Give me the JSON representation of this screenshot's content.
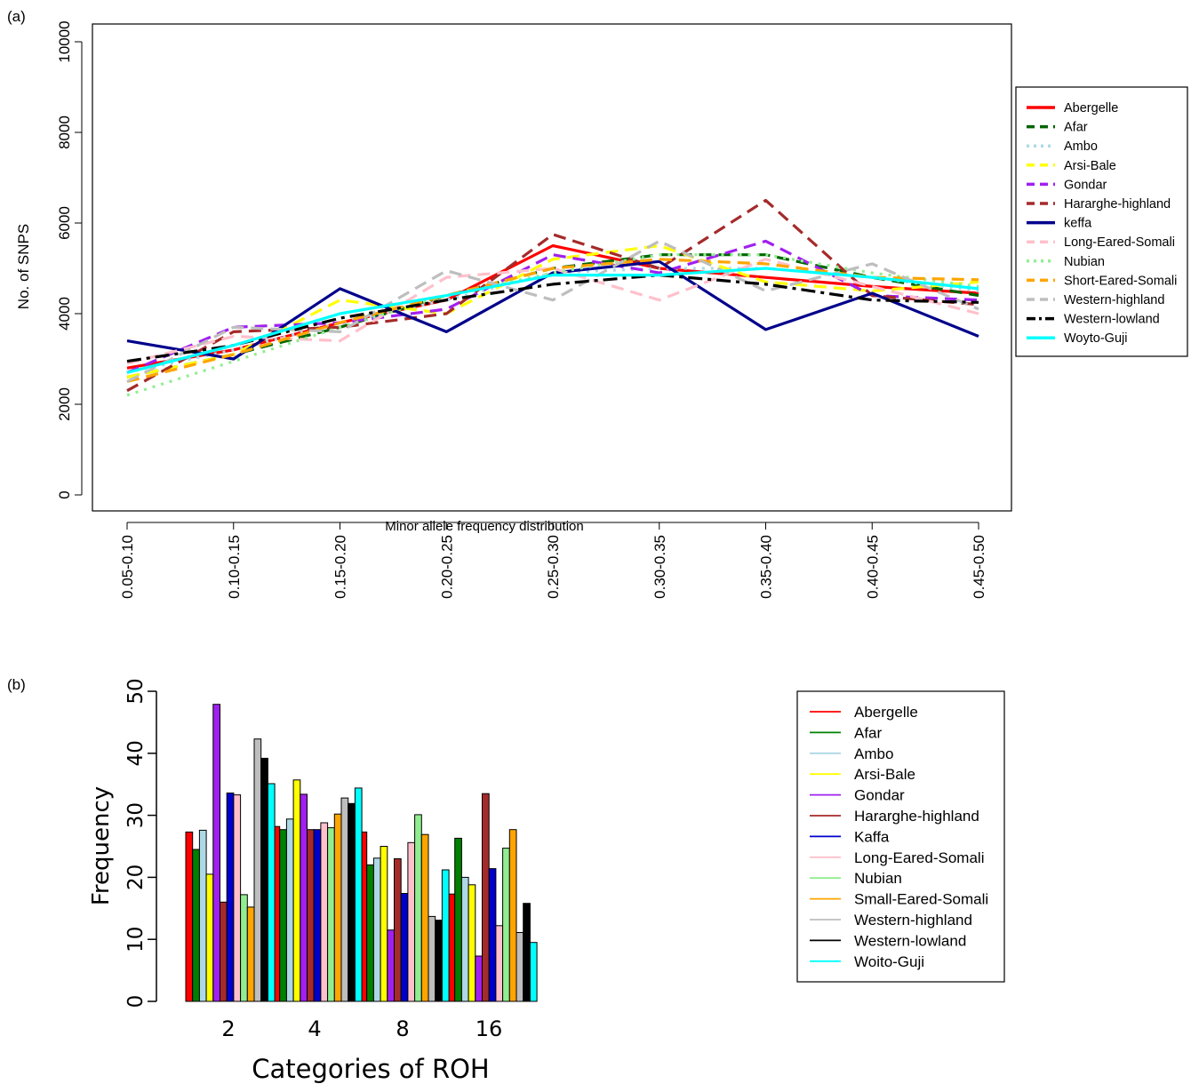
{
  "panel_a_label": "(a)",
  "panel_b_label": "(b)",
  "chart_data": [
    {
      "type": "line",
      "title": "",
      "xlabel": "Minor allele frequency distribution",
      "ylabel": "No. of SNPS",
      "categories": [
        "0.05-0.10",
        "0.10-0.15",
        "0.15-0.20",
        "0.20-0.25",
        "0.25-0.30",
        "0.30-0.35",
        "0.35-0.40",
        "0.40-0.45",
        "0.45-0.50"
      ],
      "ylim": [
        0,
        10000
      ],
      "yticks": [
        0,
        2000,
        4000,
        6000,
        8000,
        10000
      ],
      "grid": false,
      "legend_position": "right",
      "series": [
        {
          "name": "Abergelle",
          "color": "#ff0000",
          "dash": "solid",
          "values": [
            2800,
            3200,
            3800,
            4300,
            5500,
            5000,
            4800,
            4600,
            4450
          ]
        },
        {
          "name": "Afar",
          "color": "#006400",
          "dash": "dashed",
          "values": [
            2600,
            3100,
            3700,
            4400,
            5000,
            5300,
            5300,
            4800,
            4400
          ]
        },
        {
          "name": "Ambo",
          "color": "#add8e6",
          "dash": "dotted",
          "values": [
            2700,
            3200,
            3800,
            4300,
            4900,
            5000,
            5000,
            4800,
            4500
          ]
        },
        {
          "name": "Arsi-Bale",
          "color": "#ffff00",
          "dash": "dashed",
          "values": [
            2600,
            3100,
            4300,
            4000,
            5200,
            5500,
            4700,
            4500,
            4700
          ]
        },
        {
          "name": "Gondar",
          "color": "#a020f0",
          "dash": "dashed",
          "values": [
            2700,
            3700,
            3800,
            4100,
            5300,
            4900,
            5600,
            4400,
            4300
          ]
        },
        {
          "name": "Hararghe-highland",
          "color": "#a52a2a",
          "dash": "dashed",
          "values": [
            2300,
            3600,
            3700,
            4000,
            5750,
            5000,
            6500,
            4400,
            4200
          ]
        },
        {
          "name": "keffa",
          "color": "#00008b",
          "dash": "solid",
          "values": [
            3400,
            3000,
            4550,
            3600,
            4900,
            5150,
            3650,
            4450,
            3500
          ]
        },
        {
          "name": "Long-Eared-Somali",
          "color": "#ffc0cb",
          "dash": "dashed",
          "values": [
            2900,
            3500,
            3400,
            4800,
            5000,
            4300,
            5200,
            4600,
            4000
          ]
        },
        {
          "name": "Nubian",
          "color": "#90ee90",
          "dash": "dotted",
          "values": [
            2200,
            2950,
            3700,
            4400,
            4900,
            5300,
            5300,
            4900,
            4600
          ]
        },
        {
          "name": "Short-Eared-Somali",
          "color": "#ffa500",
          "dash": "dashed",
          "values": [
            2500,
            3100,
            3800,
            4400,
            5000,
            5200,
            5100,
            4800,
            4750
          ]
        },
        {
          "name": "Western-highland",
          "color": "#bebebe",
          "dash": "dashed",
          "values": [
            2500,
            3700,
            3600,
            4950,
            4300,
            5600,
            4500,
            5100,
            4100
          ]
        },
        {
          "name": "Western-lowland",
          "color": "#000000",
          "dash": "dotdash",
          "values": [
            2950,
            3300,
            3900,
            4300,
            4650,
            4850,
            4650,
            4300,
            4250
          ]
        },
        {
          "name": "Woyto-Guji",
          "color": "#00ffff",
          "dash": "solid",
          "values": [
            2700,
            3300,
            4000,
            4400,
            4850,
            4850,
            5000,
            4800,
            4550
          ]
        }
      ]
    },
    {
      "type": "bar",
      "title": "",
      "xlabel": "Categories of ROH",
      "ylabel": "Frequency",
      "categories": [
        "2",
        "4",
        "8",
        "16"
      ],
      "ylim": [
        0,
        50
      ],
      "yticks": [
        0,
        10,
        20,
        30,
        40,
        50
      ],
      "grid": false,
      "legend_position": "right",
      "series": [
        {
          "name": "Abergelle",
          "color": "#ff0000",
          "values": [
            27.3,
            28.2,
            27.3,
            17.3
          ]
        },
        {
          "name": "Afar",
          "color": "#008000",
          "values": [
            24.5,
            27.7,
            22.0,
            26.3
          ]
        },
        {
          "name": "Ambo",
          "color": "#add8e6",
          "values": [
            27.6,
            29.4,
            23.1,
            20.0
          ]
        },
        {
          "name": "Arsi-Bale",
          "color": "#ffff00",
          "values": [
            20.5,
            35.7,
            25.0,
            18.8
          ]
        },
        {
          "name": "Gondar",
          "color": "#a020f0",
          "values": [
            47.9,
            33.4,
            11.5,
            7.3
          ]
        },
        {
          "name": "Hararghe-highland",
          "color": "#a52a2a",
          "values": [
            16.0,
            27.7,
            23.0,
            33.5
          ]
        },
        {
          "name": "Kaffa",
          "color": "#0000cd",
          "values": [
            33.6,
            27.7,
            17.4,
            21.4
          ]
        },
        {
          "name": "Long-Eared-Somali",
          "color": "#ffc0cb",
          "values": [
            33.3,
            28.8,
            25.6,
            12.2
          ]
        },
        {
          "name": "Nubian",
          "color": "#90ee90",
          "values": [
            17.2,
            28.0,
            30.1,
            24.7
          ]
        },
        {
          "name": "Small-Eared-Somali",
          "color": "#ffa500",
          "values": [
            15.2,
            30.2,
            26.9,
            27.7
          ]
        },
        {
          "name": "Western-highland",
          "color": "#bebebe",
          "values": [
            42.3,
            32.8,
            13.7,
            11.1
          ]
        },
        {
          "name": "Western-lowland",
          "color": "#000000",
          "values": [
            39.2,
            31.9,
            13.1,
            15.8
          ]
        },
        {
          "name": "Woito-Guji",
          "color": "#00ffff",
          "values": [
            35.1,
            34.4,
            21.2,
            9.5
          ]
        }
      ]
    }
  ]
}
